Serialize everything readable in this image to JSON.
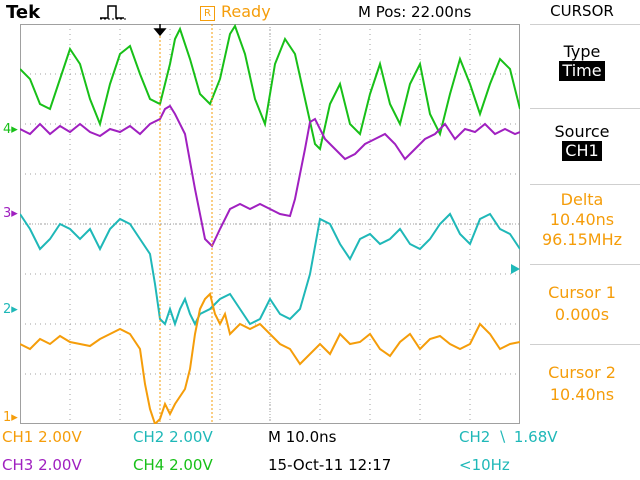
{
  "header": {
    "brand": "Tek",
    "status": "Ready",
    "status_box_glyph": "R",
    "mpos": "M Pos: 22.00ns"
  },
  "menu": {
    "title": "CURSOR",
    "type_label": "Type",
    "type_value": "Time",
    "source_label": "Source",
    "source_value": "CH1",
    "delta_label": "Delta",
    "delta_time": "10.40ns",
    "delta_freq": "96.15MHz",
    "cursor1_label": "Cursor 1",
    "cursor1_value": "0.000s",
    "cursor2_label": "Cursor 2",
    "cursor2_value": "10.40ns"
  },
  "channel_markers": {
    "ch1": "1",
    "ch2": "2",
    "ch3": "3",
    "ch4": "4"
  },
  "bottom": {
    "ch1": "CH1  2.00V",
    "ch2": "CH2  2.00V",
    "ch3": "CH3  2.00V",
    "ch4": "CH4  2.00V",
    "timebase": "M 10.0ns",
    "date": "15-Oct-11 12:17",
    "trigger_src": "CH2",
    "trigger_level": "1.68V",
    "freq": "<10Hz"
  },
  "colors": {
    "ch1": "#f59d0a",
    "ch2": "#1fb8b8",
    "ch3": "#a020c0",
    "ch4": "#18c018",
    "grid": "#a0a0a0",
    "cursor": "#f59d0a"
  }
}
